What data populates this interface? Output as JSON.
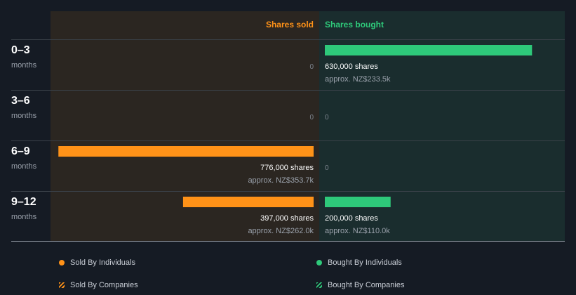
{
  "chart_data": {
    "type": "bar",
    "orientation": "diverging-horizontal",
    "headers": {
      "sold": "Shares sold",
      "bought": "Shares bought"
    },
    "max_value": 800000,
    "periods": [
      {
        "label": "0–3",
        "sublabel": "months",
        "sold": 0,
        "sold_text": "0",
        "sold_approx": "",
        "bought": 630000,
        "bought_text": "630,000 shares",
        "bought_approx": "approx. NZ$233.5k"
      },
      {
        "label": "3–6",
        "sublabel": "months",
        "sold": 0,
        "sold_text": "0",
        "sold_approx": "",
        "bought": 0,
        "bought_text": "0",
        "bought_approx": ""
      },
      {
        "label": "6–9",
        "sublabel": "months",
        "sold": 776000,
        "sold_text": "776,000 shares",
        "sold_approx": "approx. NZ$353.7k",
        "bought": 0,
        "bought_text": "0",
        "bought_approx": ""
      },
      {
        "label": "9–12",
        "sublabel": "months",
        "sold": 397000,
        "sold_text": "397,000 shares",
        "sold_approx": "approx. NZ$262.0k",
        "bought": 200000,
        "bought_text": "200,000 shares",
        "bought_approx": "approx. NZ$110.0k"
      }
    ],
    "colors": {
      "sold": "#ff9218",
      "bought": "#2ec97a",
      "sold_panel": "#2b2621",
      "bought_panel": "#1a2d2e"
    }
  },
  "legend": [
    {
      "label": "Sold By Individuals",
      "color": "#ff9218",
      "style": "dot"
    },
    {
      "label": "Bought By Individuals",
      "color": "#2ec97a",
      "style": "dot"
    },
    {
      "label": "Sold By Companies",
      "color": "#ff9218",
      "style": "hatch"
    },
    {
      "label": "Bought By Companies",
      "color": "#2ec97a",
      "style": "hatch"
    }
  ]
}
